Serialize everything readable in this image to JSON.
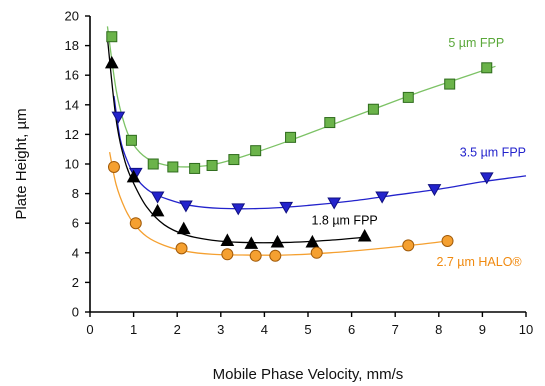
{
  "chart_data": {
    "type": "scatter",
    "title": "",
    "xlabel": "Mobile Phase Velocity, mm/s",
    "ylabel": "Plate Height, µm",
    "xlim": [
      0,
      10
    ],
    "ylim": [
      0,
      20
    ],
    "xticks": [
      0,
      1,
      2,
      3,
      4,
      5,
      6,
      7,
      8,
      9,
      10
    ],
    "yticks": [
      0,
      2,
      4,
      6,
      8,
      10,
      12,
      14,
      16,
      18,
      20
    ],
    "grid": false,
    "legend": "inline labels next to curves",
    "series": [
      {
        "name": "5 µm FPP",
        "marker": "square",
        "color": "#6bb34a",
        "edge": "#2e6b1c",
        "line_color": "#7cc265",
        "x": [
          0.5,
          0.95,
          1.45,
          1.9,
          2.4,
          2.8,
          3.3,
          3.8,
          4.6,
          5.5,
          6.5,
          7.3,
          8.25,
          9.1
        ],
        "y": [
          18.6,
          11.6,
          10.0,
          9.8,
          9.7,
          9.9,
          10.3,
          10.9,
          11.8,
          12.8,
          13.7,
          14.5,
          15.4,
          16.5
        ],
        "fit_x": [
          0.4,
          0.6,
          0.8,
          1.0,
          1.3,
          1.7,
          2.2,
          2.8,
          3.5,
          4.5,
          5.5,
          6.5,
          7.5,
          8.5,
          9.3
        ],
        "fit_y": [
          19.3,
          15.0,
          12.6,
          11.3,
          10.4,
          9.95,
          9.8,
          9.95,
          10.5,
          11.5,
          12.6,
          13.7,
          14.8,
          15.8,
          16.6
        ]
      },
      {
        "name": "3.5 µm FPP",
        "marker": "triangle-down",
        "color": "#2323cc",
        "edge": "#101080",
        "line_color": "#2323cc",
        "x": [
          0.65,
          1.05,
          1.55,
          2.2,
          3.4,
          4.5,
          5.6,
          6.7,
          7.9,
          9.1
        ],
        "y": [
          13.2,
          9.4,
          7.8,
          7.2,
          7.0,
          7.1,
          7.4,
          7.8,
          8.3,
          9.1
        ],
        "fit_x": [
          0.55,
          0.7,
          0.9,
          1.1,
          1.4,
          1.8,
          2.3,
          3.0,
          4.0,
          5.0,
          6.0,
          7.0,
          8.0,
          9.0,
          10.0
        ],
        "fit_y": [
          14.6,
          11.6,
          9.9,
          8.9,
          8.1,
          7.6,
          7.2,
          7.0,
          7.0,
          7.2,
          7.5,
          7.9,
          8.3,
          8.8,
          9.2
        ]
      },
      {
        "name": "1.8 µm FPP",
        "marker": "triangle-up",
        "color": "#000000",
        "edge": "#000000",
        "line_color": "#000000",
        "x": [
          0.5,
          1.0,
          1.55,
          2.15,
          3.15,
          3.7,
          4.3,
          5.1,
          6.3
        ],
        "y": [
          16.8,
          9.1,
          6.8,
          5.6,
          4.8,
          4.6,
          4.7,
          4.7,
          5.1
        ],
        "fit_x": [
          0.4,
          0.6,
          0.8,
          1.0,
          1.3,
          1.7,
          2.2,
          2.8,
          3.5,
          4.5,
          5.5,
          6.3
        ],
        "fit_y": [
          18.5,
          13.0,
          10.2,
          8.7,
          7.1,
          5.9,
          5.2,
          4.85,
          4.7,
          4.7,
          4.85,
          5.05
        ]
      },
      {
        "name": "2.7 µm HALO®",
        "marker": "circle",
        "color": "#f5a030",
        "edge": "#a05a0a",
        "line_color": "#f5a030",
        "x": [
          0.55,
          1.05,
          2.1,
          3.15,
          3.8,
          4.25,
          5.2,
          7.3,
          8.2
        ],
        "y": [
          9.8,
          6.0,
          4.3,
          3.9,
          3.8,
          3.8,
          4.0,
          4.5,
          4.8
        ],
        "fit_x": [
          0.45,
          0.6,
          0.8,
          1.0,
          1.3,
          1.7,
          2.2,
          2.8,
          3.5,
          4.5,
          5.5,
          6.5,
          7.5,
          8.2
        ],
        "fit_y": [
          10.8,
          8.6,
          7.0,
          6.0,
          5.1,
          4.5,
          4.1,
          3.9,
          3.85,
          3.85,
          4.0,
          4.25,
          4.55,
          4.8
        ]
      }
    ],
    "labels": [
      {
        "text": "5 µm FPP",
        "x": 9.5,
        "y": 17.9,
        "anchor": "end",
        "color": "#5aa83a"
      },
      {
        "text": "3.5 µm FPP",
        "x": 10.0,
        "y": 10.5,
        "anchor": "end",
        "color": "#2323cc"
      },
      {
        "text": "1.8 µm FPP",
        "x": 6.6,
        "y": 5.9,
        "anchor": "end",
        "color": "#000000"
      },
      {
        "text": "2.7 µm HALO®",
        "x": 9.9,
        "y": 3.1,
        "anchor": "end",
        "color": "#f08a10"
      }
    ]
  }
}
